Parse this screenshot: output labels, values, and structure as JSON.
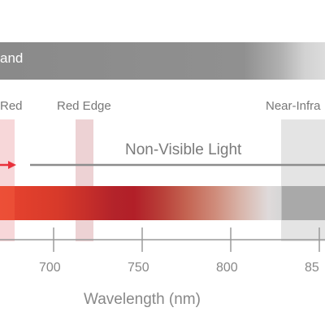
{
  "banner": {
    "label": "and"
  },
  "bands": {
    "red": "Red",
    "red_edge": "Red Edge",
    "near_infrared": "Near-Infra"
  },
  "non_visible_label": "Non-Visible Light",
  "axis": {
    "title": "Wavelength (nm)",
    "ticks": [
      "700",
      "750",
      "800",
      "85"
    ]
  },
  "colors": {
    "red_band": "#f7d7d9",
    "red_edge_band": "#edd2d4",
    "nir_band": "#e4e4e4",
    "arrow_red": "#e8323c",
    "non_visible_arrow": "#8c8c8c"
  }
}
